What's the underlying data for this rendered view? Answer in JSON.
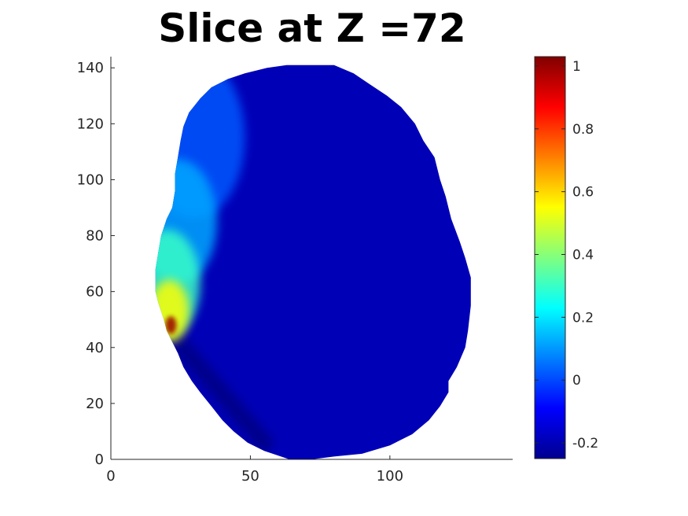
{
  "chart_data": {
    "type": "heatmap",
    "title": "Slice at Z =72",
    "xlabel": "",
    "ylabel": "",
    "xlim": [
      0,
      144
    ],
    "ylim": [
      0,
      144
    ],
    "x_ticks": [
      "0",
      "50",
      "100"
    ],
    "x_tick_values": [
      0,
      50,
      100
    ],
    "y_ticks": [
      "0",
      "20",
      "40",
      "60",
      "80",
      "100",
      "120",
      "140"
    ],
    "y_tick_values": [
      0,
      20,
      40,
      60,
      80,
      100,
      120,
      140
    ],
    "colormap": "jet",
    "colorbar": {
      "clim": [
        -0.25,
        1.03
      ],
      "ticks": [
        "-0.2",
        "0",
        "0.2",
        "0.4",
        "0.6",
        "0.8",
        "1"
      ],
      "tick_values": [
        -0.2,
        0,
        0.2,
        0.4,
        0.6,
        0.8,
        1
      ]
    },
    "background_value": -0.18,
    "masked_color": "#ffffff",
    "region_outline": {
      "description_values": "boundary of non-masked region in data units (x,y)",
      "points": [
        [
          64,
          0
        ],
        [
          72,
          0
        ],
        [
          80,
          1
        ],
        [
          90,
          2
        ],
        [
          100,
          5
        ],
        [
          108,
          9
        ],
        [
          114,
          14
        ],
        [
          118,
          19
        ],
        [
          121,
          24
        ],
        [
          121,
          28
        ],
        [
          124,
          33
        ],
        [
          127,
          40
        ],
        [
          128,
          46
        ],
        [
          129,
          55
        ],
        [
          129,
          65
        ],
        [
          127,
          72
        ],
        [
          125,
          78
        ],
        [
          122,
          86
        ],
        [
          120,
          94
        ],
        [
          118,
          100
        ],
        [
          116,
          108
        ],
        [
          112,
          114
        ],
        [
          109,
          120
        ],
        [
          104,
          126
        ],
        [
          99,
          130
        ],
        [
          93,
          134
        ],
        [
          87,
          138
        ],
        [
          80,
          141
        ],
        [
          71,
          141
        ],
        [
          63,
          141
        ],
        [
          56,
          140
        ],
        [
          48,
          138
        ],
        [
          42,
          136
        ],
        [
          36,
          133
        ],
        [
          32,
          129
        ],
        [
          28,
          124
        ],
        [
          26,
          119
        ],
        [
          25,
          114
        ],
        [
          24,
          108
        ],
        [
          23,
          102
        ],
        [
          23,
          96
        ],
        [
          22,
          90
        ],
        [
          20,
          86
        ],
        [
          18,
          80
        ],
        [
          17,
          74
        ],
        [
          16,
          68
        ],
        [
          16,
          60
        ],
        [
          17,
          56
        ],
        [
          19,
          50
        ],
        [
          20,
          46
        ],
        [
          22,
          42
        ],
        [
          24,
          38
        ],
        [
          26,
          33
        ],
        [
          29,
          28
        ],
        [
          32,
          24
        ],
        [
          36,
          19
        ],
        [
          40,
          14
        ],
        [
          44,
          10
        ],
        [
          49,
          6
        ],
        [
          55,
          3
        ]
      ]
    },
    "hotspots": [
      {
        "x": 21.5,
        "y": 48,
        "value": 1.0,
        "radius": 2
      },
      {
        "x": 21,
        "y": 53,
        "value": 0.55,
        "radius": 7
      },
      {
        "x": 20,
        "y": 63,
        "value": 0.3,
        "radius": 12
      },
      {
        "x": 24,
        "y": 85,
        "value": 0.12,
        "radius": 14
      },
      {
        "x": 30,
        "y": 115,
        "value": 0.02,
        "radius": 18
      }
    ],
    "cold_band": {
      "from": [
        24,
        42
      ],
      "to": [
        55,
        6
      ],
      "value": -0.24
    }
  }
}
